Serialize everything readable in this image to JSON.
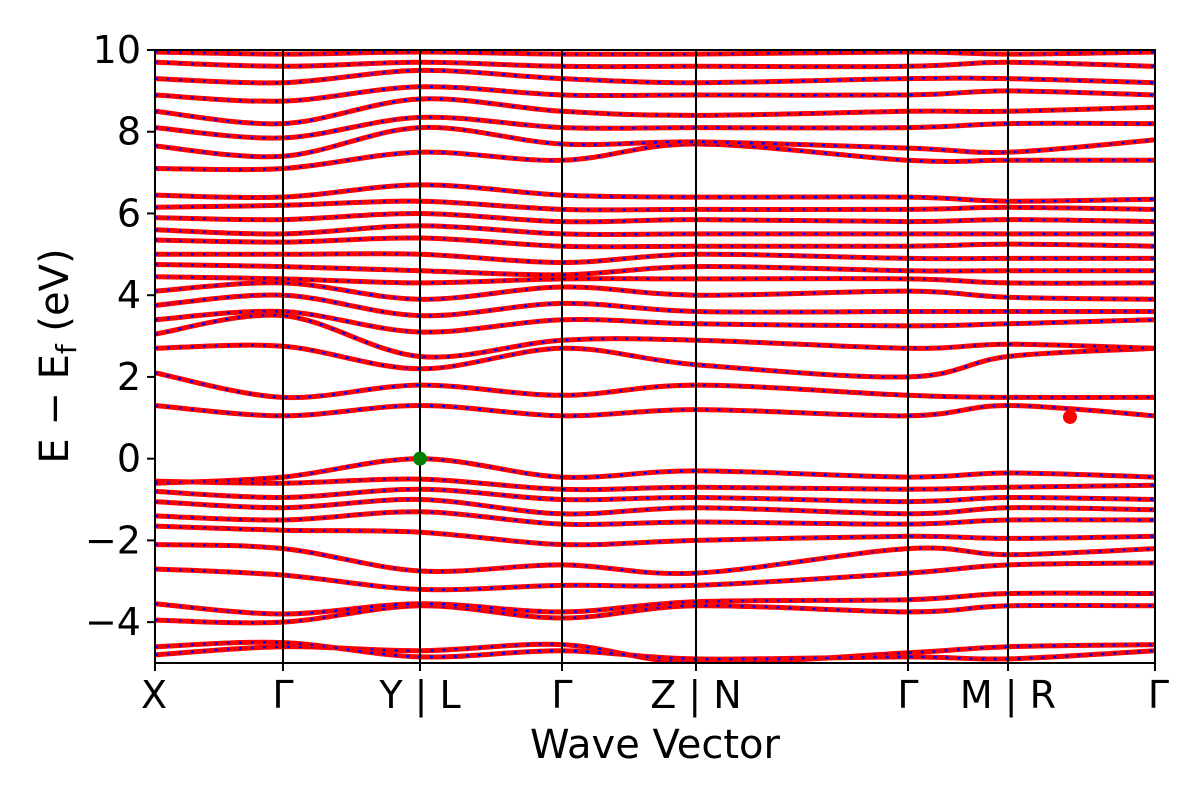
{
  "chart_data": {
    "type": "line",
    "title": "",
    "xlabel": "Wave Vector",
    "ylabel": "E − E",
    "ylabel_subscript": "f",
    "ylabel_unit": " (eV)",
    "ylim": [
      -5,
      10
    ],
    "y_ticks": [
      -4,
      -2,
      0,
      2,
      4,
      6,
      8,
      10
    ],
    "y_tick_labels": [
      "−4",
      "−2",
      "0",
      "2",
      "4",
      "6",
      "8",
      "10"
    ],
    "x_range": [
      0,
      1
    ],
    "high_symmetry_points": [
      {
        "label": "X",
        "x": 0.0
      },
      {
        "label": "Γ",
        "x": 0.128
      },
      {
        "label": "Y | L",
        "x": 0.265
      },
      {
        "label": "Γ",
        "x": 0.407
      },
      {
        "label": "Z | N",
        "x": 0.541
      },
      {
        "label": "Γ",
        "x": 0.753
      },
      {
        "label": "M | R",
        "x": 0.853
      },
      {
        "label": "Γ",
        "x": 1.0
      }
    ],
    "series_colors": {
      "spin_up": "#0000ff",
      "spin_down": "#ff0000"
    },
    "band_line_color": "#ff0000",
    "band_dash_color": "#0000ff",
    "vbm": {
      "x": 0.265,
      "y": 0.0,
      "color": "#008000"
    },
    "cbm": {
      "x": 0.915,
      "y": 1.02,
      "color": "#ff0000"
    },
    "grid": false,
    "legend": "none",
    "bands": [
      [
        [
          0,
          -4.8
        ],
        [
          0.128,
          -4.6
        ],
        [
          0.265,
          -4.7
        ],
        [
          0.407,
          -4.55
        ],
        [
          0.541,
          -5.0
        ],
        [
          0.753,
          -4.75
        ],
        [
          0.853,
          -4.6
        ],
        [
          1.0,
          -4.55
        ]
      ],
      [
        [
          0,
          -4.6
        ],
        [
          0.128,
          -4.5
        ],
        [
          0.265,
          -4.85
        ],
        [
          0.407,
          -4.7
        ],
        [
          0.541,
          -4.9
        ],
        [
          0.753,
          -4.85
        ],
        [
          0.853,
          -4.9
        ],
        [
          1.0,
          -4.7
        ]
      ],
      [
        [
          0,
          -3.95
        ],
        [
          0.128,
          -4.0
        ],
        [
          0.265,
          -3.6
        ],
        [
          0.407,
          -3.9
        ],
        [
          0.541,
          -3.6
        ],
        [
          0.753,
          -3.75
        ],
        [
          0.853,
          -3.6
        ],
        [
          1.0,
          -3.6
        ]
      ],
      [
        [
          0,
          -3.55
        ],
        [
          0.128,
          -3.8
        ],
        [
          0.265,
          -3.55
        ],
        [
          0.407,
          -3.75
        ],
        [
          0.541,
          -3.5
        ],
        [
          0.753,
          -3.45
        ],
        [
          0.853,
          -3.3
        ],
        [
          1.0,
          -3.3
        ]
      ],
      [
        [
          0,
          -2.7
        ],
        [
          0.128,
          -2.85
        ],
        [
          0.265,
          -3.2
        ],
        [
          0.407,
          -3.1
        ],
        [
          0.541,
          -3.1
        ],
        [
          0.753,
          -2.8
        ],
        [
          0.853,
          -2.6
        ],
        [
          1.0,
          -2.55
        ]
      ],
      [
        [
          0,
          -2.1
        ],
        [
          0.128,
          -2.2
        ],
        [
          0.265,
          -2.75
        ],
        [
          0.407,
          -2.6
        ],
        [
          0.541,
          -2.8
        ],
        [
          0.753,
          -2.2
        ],
        [
          0.853,
          -2.35
        ],
        [
          1.0,
          -2.2
        ]
      ],
      [
        [
          0,
          -1.65
        ],
        [
          0.128,
          -1.75
        ],
        [
          0.265,
          -1.8
        ],
        [
          0.407,
          -2.1
        ],
        [
          0.541,
          -2.0
        ],
        [
          0.753,
          -1.9
        ],
        [
          0.853,
          -1.95
        ],
        [
          1.0,
          -1.9
        ]
      ],
      [
        [
          0,
          -1.4
        ],
        [
          0.128,
          -1.5
        ],
        [
          0.265,
          -1.3
        ],
        [
          0.407,
          -1.6
        ],
        [
          0.541,
          -1.55
        ],
        [
          0.753,
          -1.6
        ],
        [
          0.853,
          -1.5
        ],
        [
          1.0,
          -1.5
        ]
      ],
      [
        [
          0,
          -1.05
        ],
        [
          0.128,
          -1.2
        ],
        [
          0.265,
          -1.0
        ],
        [
          0.407,
          -1.35
        ],
        [
          0.541,
          -1.2
        ],
        [
          0.753,
          -1.35
        ],
        [
          0.853,
          -1.2
        ],
        [
          1.0,
          -1.25
        ]
      ],
      [
        [
          0,
          -0.8
        ],
        [
          0.128,
          -0.95
        ],
        [
          0.265,
          -0.75
        ],
        [
          0.407,
          -1.0
        ],
        [
          0.541,
          -0.95
        ],
        [
          0.753,
          -1.05
        ],
        [
          0.853,
          -0.95
        ],
        [
          1.0,
          -1.0
        ]
      ],
      [
        [
          0,
          -0.55
        ],
        [
          0.128,
          -0.6
        ],
        [
          0.265,
          -0.5
        ],
        [
          0.407,
          -0.75
        ],
        [
          0.541,
          -0.7
        ],
        [
          0.753,
          -0.75
        ],
        [
          0.853,
          -0.7
        ],
        [
          1.0,
          -0.65
        ]
      ],
      [
        [
          0,
          -0.6
        ],
        [
          0.128,
          -0.45
        ],
        [
          0.265,
          0.0
        ],
        [
          0.407,
          -0.45
        ],
        [
          0.541,
          -0.3
        ],
        [
          0.753,
          -0.45
        ],
        [
          0.853,
          -0.35
        ],
        [
          1.0,
          -0.45
        ]
      ],
      [
        [
          0,
          1.3
        ],
        [
          0.128,
          1.05
        ],
        [
          0.265,
          1.3
        ],
        [
          0.407,
          1.05
        ],
        [
          0.541,
          1.2
        ],
        [
          0.753,
          1.05
        ],
        [
          0.853,
          1.3
        ],
        [
          1.0,
          1.05
        ]
      ],
      [
        [
          0,
          2.1
        ],
        [
          0.128,
          1.5
        ],
        [
          0.265,
          1.8
        ],
        [
          0.407,
          1.55
        ],
        [
          0.541,
          1.8
        ],
        [
          0.753,
          1.55
        ],
        [
          0.853,
          1.5
        ],
        [
          1.0,
          1.5
        ]
      ],
      [
        [
          0,
          2.7
        ],
        [
          0.128,
          2.75
        ],
        [
          0.265,
          2.2
        ],
        [
          0.407,
          2.7
        ],
        [
          0.541,
          2.3
        ],
        [
          0.753,
          2.0
        ],
        [
          0.853,
          2.5
        ],
        [
          1.0,
          2.7
        ]
      ],
      [
        [
          0,
          3.05
        ],
        [
          0.128,
          3.5
        ],
        [
          0.265,
          2.5
        ],
        [
          0.407,
          2.9
        ],
        [
          0.541,
          2.9
        ],
        [
          0.753,
          2.7
        ],
        [
          0.853,
          2.8
        ],
        [
          1.0,
          2.7
        ]
      ],
      [
        [
          0,
          3.4
        ],
        [
          0.128,
          3.6
        ],
        [
          0.265,
          3.1
        ],
        [
          0.407,
          3.4
        ],
        [
          0.541,
          3.3
        ],
        [
          0.753,
          3.25
        ],
        [
          0.853,
          3.3
        ],
        [
          1.0,
          3.4
        ]
      ],
      [
        [
          0,
          3.75
        ],
        [
          0.128,
          4.0
        ],
        [
          0.265,
          3.5
        ],
        [
          0.407,
          3.8
        ],
        [
          0.541,
          3.6
        ],
        [
          0.753,
          3.6
        ],
        [
          0.853,
          3.6
        ],
        [
          1.0,
          3.6
        ]
      ],
      [
        [
          0,
          4.1
        ],
        [
          0.128,
          4.3
        ],
        [
          0.265,
          3.9
        ],
        [
          0.407,
          4.2
        ],
        [
          0.541,
          4.0
        ],
        [
          0.753,
          4.1
        ],
        [
          0.853,
          3.95
        ],
        [
          1.0,
          3.9
        ]
      ],
      [
        [
          0,
          4.45
        ],
        [
          0.128,
          4.4
        ],
        [
          0.265,
          4.3
        ],
        [
          0.407,
          4.4
        ],
        [
          0.541,
          4.4
        ],
        [
          0.753,
          4.4
        ],
        [
          0.853,
          4.3
        ],
        [
          1.0,
          4.3
        ]
      ],
      [
        [
          0,
          4.75
        ],
        [
          0.128,
          4.7
        ],
        [
          0.265,
          4.6
        ],
        [
          0.407,
          4.5
        ],
        [
          0.541,
          4.7
        ],
        [
          0.753,
          4.6
        ],
        [
          0.853,
          4.6
        ],
        [
          1.0,
          4.6
        ]
      ],
      [
        [
          0,
          5.0
        ],
        [
          0.128,
          5.0
        ],
        [
          0.265,
          5.0
        ],
        [
          0.407,
          4.8
        ],
        [
          0.541,
          5.0
        ],
        [
          0.753,
          4.9
        ],
        [
          0.853,
          4.9
        ],
        [
          1.0,
          4.9
        ]
      ],
      [
        [
          0,
          5.35
        ],
        [
          0.128,
          5.3
        ],
        [
          0.265,
          5.4
        ],
        [
          0.407,
          5.2
        ],
        [
          0.541,
          5.2
        ],
        [
          0.753,
          5.2
        ],
        [
          0.853,
          5.25
        ],
        [
          1.0,
          5.2
        ]
      ],
      [
        [
          0,
          5.6
        ],
        [
          0.128,
          5.5
        ],
        [
          0.265,
          5.7
        ],
        [
          0.407,
          5.5
        ],
        [
          0.541,
          5.5
        ],
        [
          0.753,
          5.5
        ],
        [
          0.853,
          5.5
        ],
        [
          1.0,
          5.5
        ]
      ],
      [
        [
          0,
          5.9
        ],
        [
          0.128,
          5.85
        ],
        [
          0.265,
          6.0
        ],
        [
          0.407,
          5.8
        ],
        [
          0.541,
          5.85
        ],
        [
          0.753,
          5.8
        ],
        [
          0.853,
          5.85
        ],
        [
          1.0,
          5.8
        ]
      ],
      [
        [
          0,
          6.15
        ],
        [
          0.128,
          6.2
        ],
        [
          0.265,
          6.3
        ],
        [
          0.407,
          6.1
        ],
        [
          0.541,
          6.1
        ],
        [
          0.753,
          6.1
        ],
        [
          0.853,
          6.15
        ],
        [
          1.0,
          6.1
        ]
      ],
      [
        [
          0,
          6.45
        ],
        [
          0.128,
          6.4
        ],
        [
          0.265,
          6.7
        ],
        [
          0.407,
          6.45
        ],
        [
          0.541,
          6.4
        ],
        [
          0.753,
          6.4
        ],
        [
          0.853,
          6.3
        ],
        [
          1.0,
          6.35
        ]
      ],
      [
        [
          0,
          7.1
        ],
        [
          0.128,
          7.1
        ],
        [
          0.265,
          7.5
        ],
        [
          0.407,
          7.3
        ],
        [
          0.541,
          7.7
        ],
        [
          0.753,
          7.3
        ],
        [
          0.853,
          7.3
        ],
        [
          1.0,
          7.3
        ]
      ],
      [
        [
          0,
          7.65
        ],
        [
          0.128,
          7.4
        ],
        [
          0.265,
          8.1
        ],
        [
          0.407,
          7.7
        ],
        [
          0.541,
          7.75
        ],
        [
          0.753,
          7.6
        ],
        [
          0.853,
          7.5
        ],
        [
          1.0,
          7.8
        ]
      ],
      [
        [
          0,
          8.1
        ],
        [
          0.128,
          7.85
        ],
        [
          0.265,
          8.35
        ],
        [
          0.407,
          8.1
        ],
        [
          0.541,
          8.1
        ],
        [
          0.753,
          8.1
        ],
        [
          0.853,
          8.2
        ],
        [
          1.0,
          8.2
        ]
      ],
      [
        [
          0,
          8.5
        ],
        [
          0.128,
          8.2
        ],
        [
          0.265,
          8.8
        ],
        [
          0.407,
          8.5
        ],
        [
          0.541,
          8.4
        ],
        [
          0.753,
          8.5
        ],
        [
          0.853,
          8.5
        ],
        [
          1.0,
          8.6
        ]
      ],
      [
        [
          0,
          8.9
        ],
        [
          0.128,
          8.75
        ],
        [
          0.265,
          9.1
        ],
        [
          0.407,
          8.9
        ],
        [
          0.541,
          8.9
        ],
        [
          0.753,
          8.9
        ],
        [
          0.853,
          9.0
        ],
        [
          1.0,
          8.9
        ]
      ],
      [
        [
          0,
          9.3
        ],
        [
          0.128,
          9.2
        ],
        [
          0.265,
          9.5
        ],
        [
          0.407,
          9.3
        ],
        [
          0.541,
          9.2
        ],
        [
          0.753,
          9.3
        ],
        [
          0.853,
          9.3
        ],
        [
          1.0,
          9.2
        ]
      ],
      [
        [
          0,
          9.7
        ],
        [
          0.128,
          9.6
        ],
        [
          0.265,
          9.7
        ],
        [
          0.407,
          9.6
        ],
        [
          0.541,
          9.6
        ],
        [
          0.753,
          9.6
        ],
        [
          0.853,
          9.7
        ],
        [
          1.0,
          9.6
        ]
      ],
      [
        [
          0,
          9.95
        ],
        [
          0.128,
          9.9
        ],
        [
          0.265,
          9.95
        ],
        [
          0.407,
          9.9
        ],
        [
          0.541,
          9.9
        ],
        [
          0.753,
          9.95
        ],
        [
          0.853,
          9.9
        ],
        [
          1.0,
          9.95
        ]
      ]
    ]
  }
}
